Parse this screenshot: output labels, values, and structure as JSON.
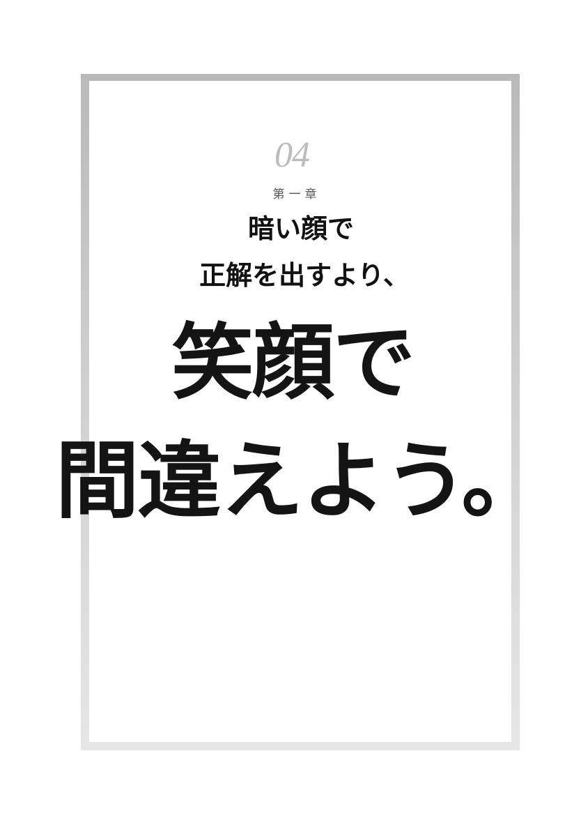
{
  "chapter": {
    "number": "04",
    "label": "第一章"
  },
  "subtitle": {
    "line1": "暗い顔で",
    "line2": "正解を出すより、"
  },
  "headline": {
    "line1": "笑顔で",
    "line2": "間違えよう。"
  }
}
